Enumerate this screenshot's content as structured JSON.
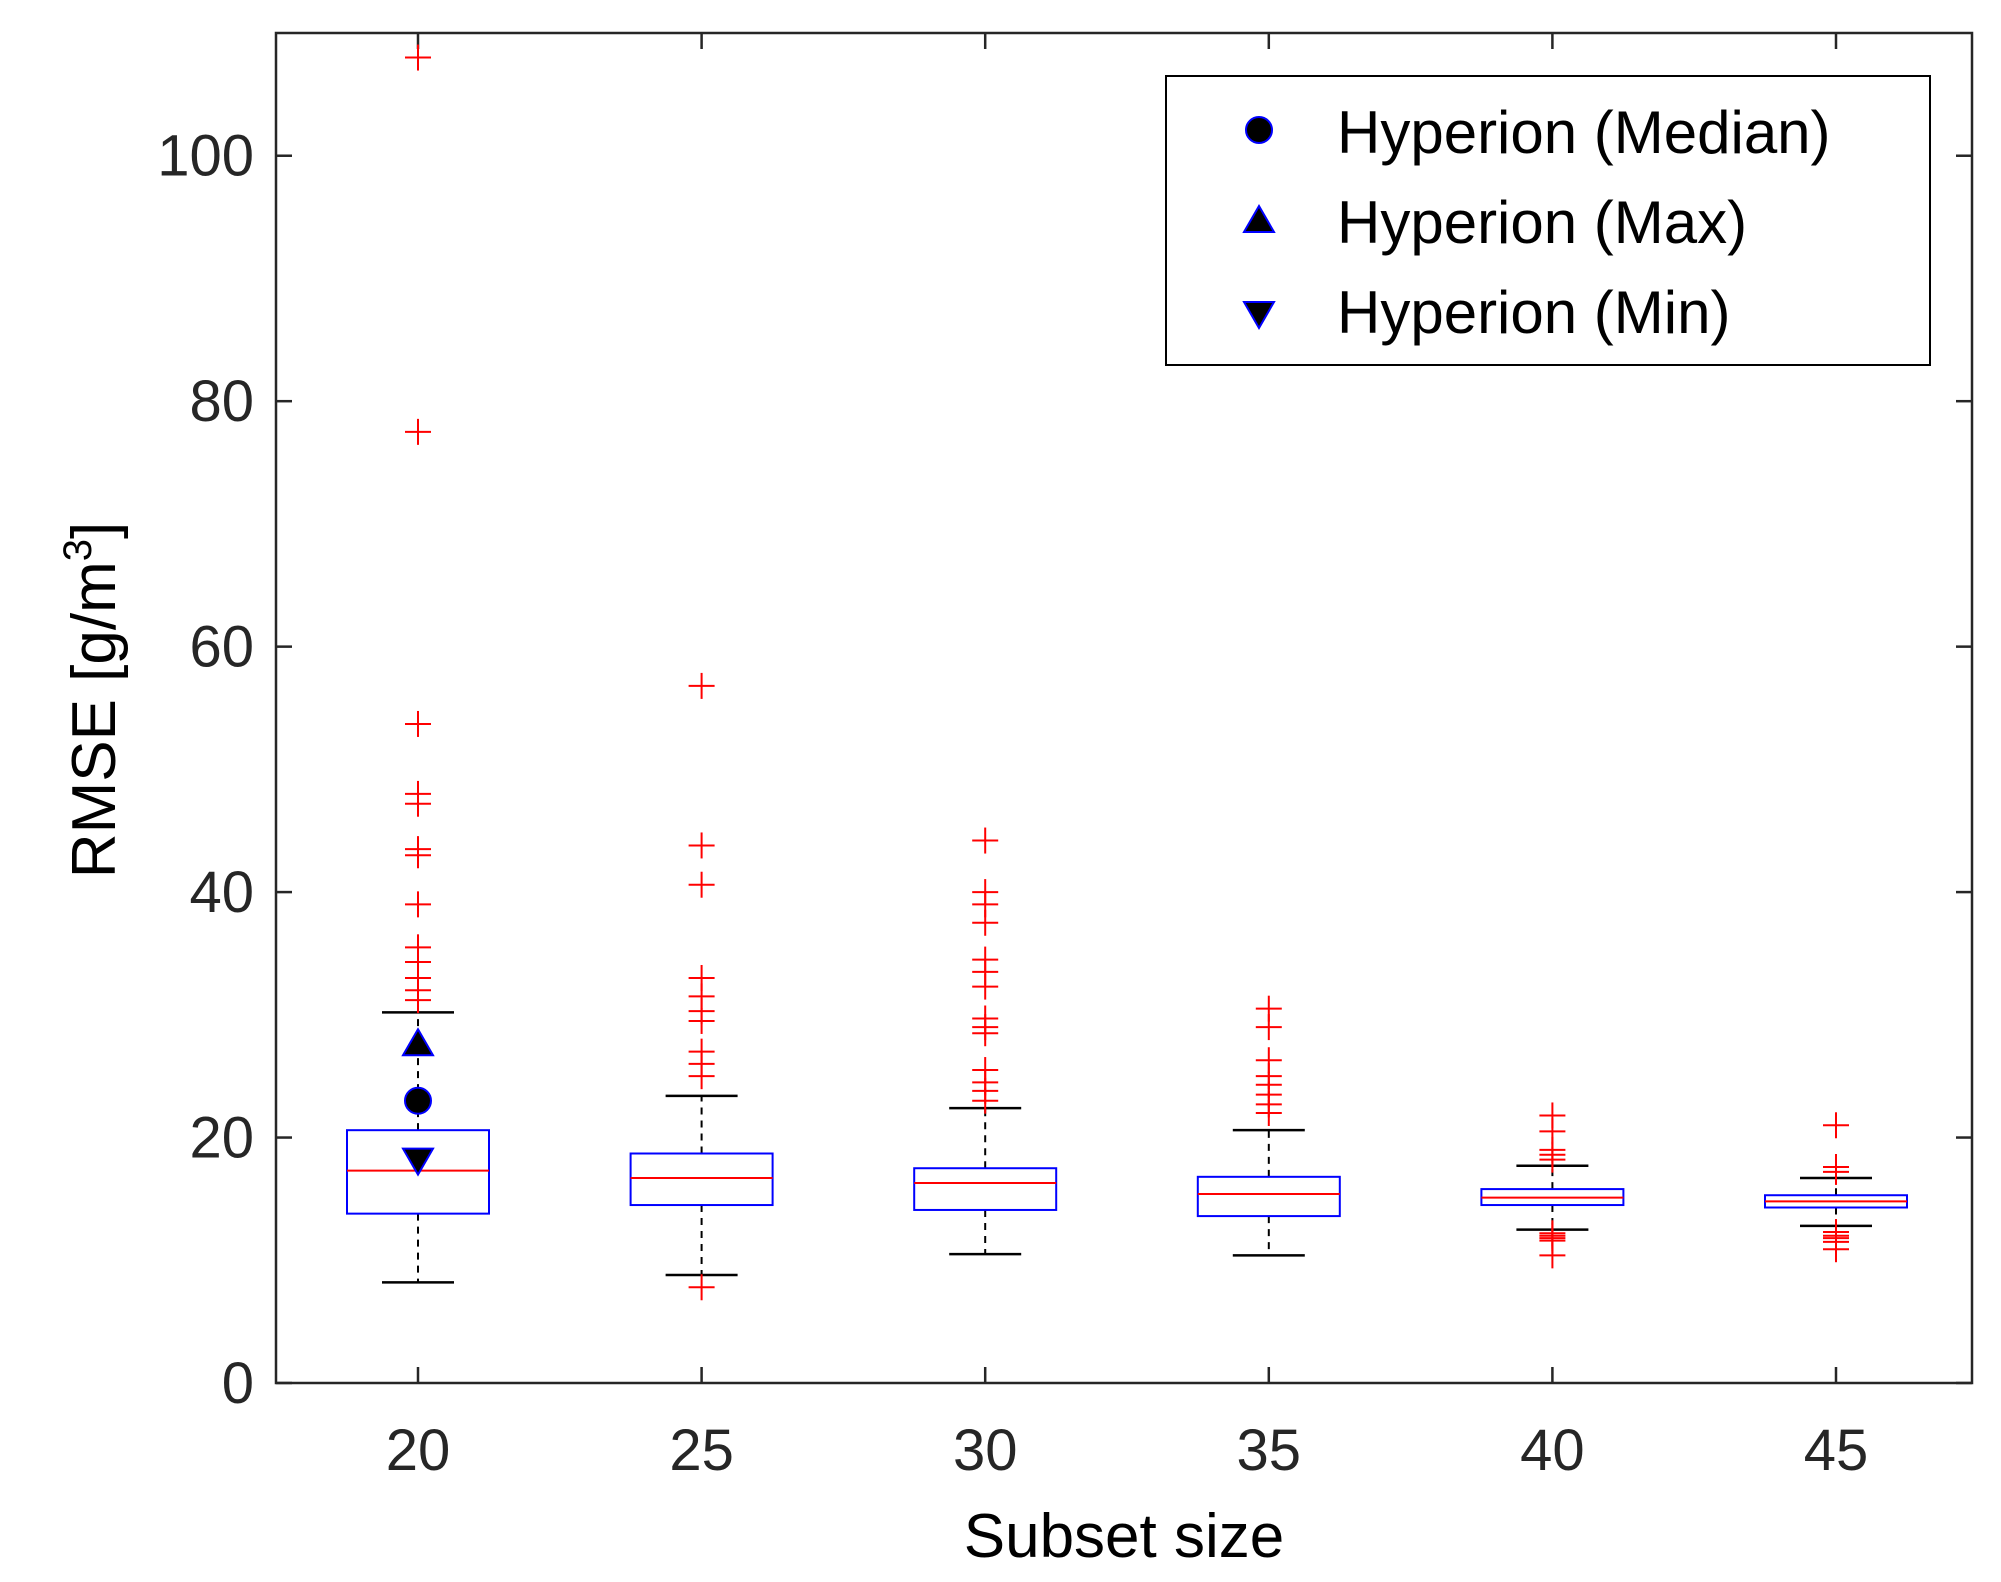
{
  "chart_data": {
    "type": "box",
    "title": "",
    "xlabel": "Subset size",
    "ylabel_main": "RMSE [g/m",
    "ylabel_sup": "3",
    "ylabel_close": "]",
    "ylim": [
      0,
      110
    ],
    "yticks": [
      0,
      20,
      40,
      60,
      80,
      100
    ],
    "ytick_labels": [
      "0",
      "20",
      "40",
      "60",
      "80",
      "100"
    ],
    "categories": [
      "20",
      "25",
      "30",
      "35",
      "40",
      "45"
    ],
    "boxes": [
      {
        "category": "20",
        "whisker_low": 8.2,
        "q1": 13.8,
        "median": 17.3,
        "q3": 20.6,
        "whisker_high": 30.2,
        "outliers": [
          31.2,
          32.0,
          33.0,
          34.3,
          35.5,
          39.0,
          43.0,
          43.5,
          47.2,
          48.0,
          53.7,
          77.5,
          108.0
        ]
      },
      {
        "category": "25",
        "whisker_low": 8.8,
        "q1": 14.5,
        "median": 16.7,
        "q3": 18.7,
        "whisker_high": 23.4,
        "outliers": [
          7.8,
          25.0,
          26.0,
          27.0,
          29.5,
          30.3,
          31.5,
          33.0,
          40.6,
          43.8,
          56.8
        ]
      },
      {
        "category": "30",
        "whisker_low": 10.5,
        "q1": 14.1,
        "median": 16.3,
        "q3": 17.5,
        "whisker_high": 22.4,
        "outliers": [
          23.0,
          23.8,
          24.5,
          25.5,
          28.5,
          29.0,
          29.7,
          32.3,
          33.5,
          34.5,
          37.5,
          39.0,
          40.0,
          44.2
        ]
      },
      {
        "category": "35",
        "whisker_low": 10.4,
        "q1": 13.6,
        "median": 15.4,
        "q3": 16.8,
        "whisker_high": 20.6,
        "outliers": [
          22.0,
          22.7,
          23.5,
          24.3,
          25.0,
          26.3,
          29.0,
          30.5
        ]
      },
      {
        "category": "40",
        "whisker_low": 12.5,
        "q1": 14.5,
        "median": 15.1,
        "q3": 15.8,
        "whisker_high": 17.7,
        "outliers": [
          10.4,
          11.6,
          11.8,
          12.0,
          12.2,
          18.2,
          18.6,
          19.0,
          20.5,
          21.8
        ]
      },
      {
        "category": "45",
        "whisker_low": 12.8,
        "q1": 14.3,
        "median": 14.8,
        "q3": 15.3,
        "whisker_high": 16.7,
        "outliers": [
          10.9,
          11.5,
          11.8,
          12.0,
          12.3,
          17.2,
          17.6,
          21.0
        ]
      }
    ],
    "markers": [
      {
        "category": "20",
        "label": "Hyperion (Median)",
        "shape": "circle",
        "value": 23.0
      },
      {
        "category": "20",
        "label": "Hyperion (Max)",
        "shape": "triangle-up",
        "value": 27.6
      },
      {
        "category": "20",
        "label": "Hyperion (Min)",
        "shape": "triangle-down",
        "value": 18.2
      }
    ],
    "legend": {
      "position": "top-right",
      "entries": [
        "Hyperion (Median)",
        "Hyperion (Max)",
        "Hyperion (Min)"
      ]
    },
    "colors": {
      "box": "#0000ff",
      "median_line": "#ff0000",
      "outlier": "#ff0000",
      "whisker": "#000000",
      "marker_fill": "#000000",
      "marker_edge": "#0000ff",
      "axes": "#262626"
    }
  }
}
